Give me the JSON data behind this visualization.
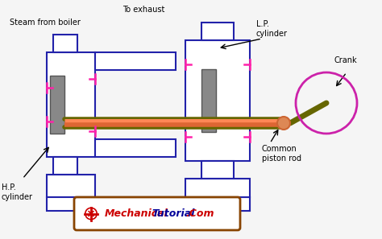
{
  "bg_color": "#f5f5f5",
  "outline_color": "#2222aa",
  "piston_color": "#888888",
  "rod_color_top": "#ff8855",
  "rod_color_bot": "#dd6633",
  "valve_color": "#ff22aa",
  "dark_rod_color": "#666600",
  "crank_color": "#cc22aa",
  "labels": {
    "steam_from_boiler": "Steam from boiler",
    "to_exhaust": "To exhaust",
    "lp_cylinder": "L.P.\ncylinder",
    "crank": "Crank",
    "hp_cylinder": "H.P.\ncylinder",
    "common_piston_rod": "Common\npiston rod"
  },
  "watermark_border": "#884400",
  "watermark_red": "#cc0000",
  "watermark_blue": "#000099"
}
